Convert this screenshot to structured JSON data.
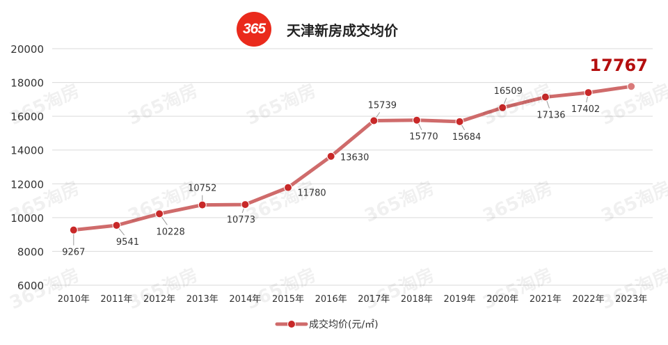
{
  "header": {
    "logo_text": "365",
    "title": "天津新房成交均价"
  },
  "watermark_text": "365淘房",
  "colors": {
    "line": "#cf6b6b",
    "marker": "#c82828",
    "highlight": "#b40f0f",
    "grid": "#d9d9d9",
    "logo": "#ea2a1c"
  },
  "chart_data": {
    "type": "line",
    "title": "天津新房成交均价",
    "categories": [
      "2010年",
      "2011年",
      "2012年",
      "2013年",
      "2014年",
      "2015年",
      "2016年",
      "2017年",
      "2018年",
      "2019年",
      "2020年",
      "2021年",
      "2022年",
      "2023年"
    ],
    "series": [
      {
        "name": "成交均价(元/㎡)",
        "values": [
          9267,
          9541,
          10228,
          10752,
          10773,
          11780,
          13630,
          15739,
          15770,
          15684,
          16509,
          17136,
          17402,
          17767
        ]
      }
    ],
    "ylim": [
      6000,
      20000
    ],
    "yticks": [
      6000,
      8000,
      10000,
      12000,
      14000,
      16000,
      18000,
      20000
    ],
    "grid": true,
    "legend_position": "bottom-center",
    "highlight_last": true
  }
}
